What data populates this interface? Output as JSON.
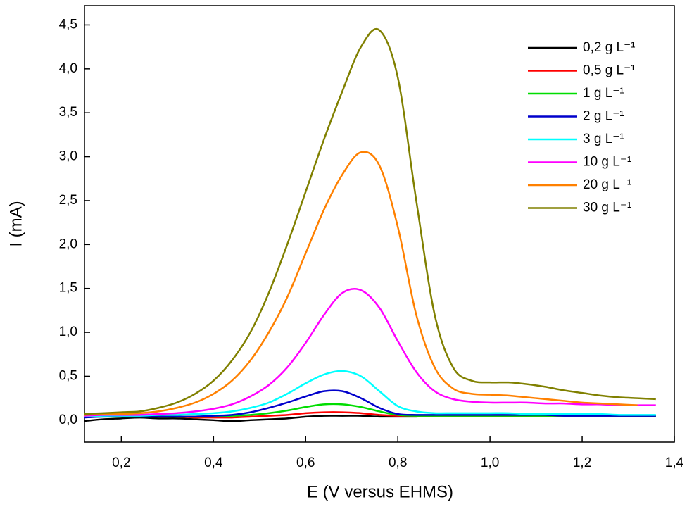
{
  "chart_data": {
    "type": "line",
    "x_label": "E (V versus EHMS)",
    "y_label": "I (mA)",
    "xlim": [
      0.12,
      1.4
    ],
    "ylim": [
      -0.25,
      4.72
    ],
    "xticks": [
      {
        "value": 0.2,
        "label": "0,2"
      },
      {
        "value": 0.4,
        "label": "0,4"
      },
      {
        "value": 0.6,
        "label": "0,6"
      },
      {
        "value": 0.8,
        "label": "0,8"
      },
      {
        "value": 1.0,
        "label": "1,0"
      },
      {
        "value": 1.2,
        "label": "1,2"
      },
      {
        "value": 1.4,
        "label": "1,4"
      }
    ],
    "yticks": [
      {
        "value": 0,
        "label": "0,0"
      },
      {
        "value": 0.5,
        "label": "0,5"
      },
      {
        "value": 1.0,
        "label": "1,0"
      },
      {
        "value": 1.5,
        "label": "1,5"
      },
      {
        "value": 2.0,
        "label": "2,0"
      },
      {
        "value": 2.5,
        "label": "2,5"
      },
      {
        "value": 3.0,
        "label": "3,0"
      },
      {
        "value": 3.5,
        "label": "3,5"
      },
      {
        "value": 4.0,
        "label": "4,0"
      },
      {
        "value": 4.5,
        "label": "4,5"
      }
    ],
    "legend": "upper right",
    "x": [
      0.12,
      0.16,
      0.2,
      0.24,
      0.28,
      0.32,
      0.36,
      0.4,
      0.44,
      0.48,
      0.52,
      0.56,
      0.6,
      0.64,
      0.68,
      0.72,
      0.76,
      0.8,
      0.84,
      0.88,
      0.92,
      0.96,
      1.0,
      1.04,
      1.08,
      1.12,
      1.16,
      1.2,
      1.24,
      1.28,
      1.32,
      1.36
    ],
    "series": [
      {
        "name": "0,2 g L⁻¹",
        "color": "#000000",
        "values": [
          -0.01,
          0.01,
          0.02,
          0.03,
          0.02,
          0.02,
          0.01,
          0.0,
          -0.01,
          0.0,
          0.01,
          0.02,
          0.04,
          0.05,
          0.05,
          0.05,
          0.04,
          0.04,
          0.04,
          0.05,
          0.05,
          0.05,
          0.05,
          0.05,
          0.05,
          0.05,
          0.05,
          0.05,
          0.05,
          0.05,
          0.05,
          0.05
        ]
      },
      {
        "name": "0,5 g L⁻¹",
        "color": "#ff0000",
        "values": [
          0.06,
          0.06,
          0.06,
          0.05,
          0.05,
          0.04,
          0.03,
          0.03,
          0.03,
          0.04,
          0.05,
          0.06,
          0.08,
          0.09,
          0.09,
          0.08,
          0.06,
          0.05,
          0.05,
          0.05,
          0.05,
          0.05,
          0.05,
          0.05,
          0.05,
          0.05,
          0.05,
          0.05,
          0.05,
          0.05,
          0.05,
          0.05
        ]
      },
      {
        "name": "1 g L⁻¹",
        "color": "#00dd00",
        "values": [
          0.04,
          0.04,
          0.04,
          0.04,
          0.04,
          0.04,
          0.04,
          0.04,
          0.05,
          0.06,
          0.08,
          0.11,
          0.15,
          0.18,
          0.18,
          0.15,
          0.1,
          0.06,
          0.05,
          0.05,
          0.05,
          0.05,
          0.05,
          0.05,
          0.05,
          0.05,
          0.05,
          0.05,
          0.05,
          0.05,
          0.05,
          0.05
        ]
      },
      {
        "name": "2 g L⁻¹",
        "color": "#0000cc",
        "values": [
          0.03,
          0.04,
          0.04,
          0.04,
          0.04,
          0.04,
          0.04,
          0.05,
          0.06,
          0.09,
          0.14,
          0.2,
          0.27,
          0.33,
          0.33,
          0.25,
          0.14,
          0.07,
          0.06,
          0.06,
          0.06,
          0.06,
          0.06,
          0.06,
          0.06,
          0.06,
          0.05,
          0.05,
          0.05,
          0.05,
          0.05,
          0.05
        ]
      },
      {
        "name": "3 g L⁻¹",
        "color": "#00ffff",
        "values": [
          0.04,
          0.05,
          0.05,
          0.05,
          0.06,
          0.06,
          0.07,
          0.08,
          0.1,
          0.14,
          0.2,
          0.3,
          0.42,
          0.52,
          0.56,
          0.5,
          0.33,
          0.16,
          0.1,
          0.08,
          0.08,
          0.08,
          0.08,
          0.08,
          0.07,
          0.07,
          0.07,
          0.07,
          0.07,
          0.06,
          0.06,
          0.06
        ]
      },
      {
        "name": "10 g L⁻¹",
        "color": "#ff00ff",
        "values": [
          0.05,
          0.06,
          0.06,
          0.06,
          0.07,
          0.08,
          0.1,
          0.13,
          0.18,
          0.27,
          0.4,
          0.6,
          0.88,
          1.2,
          1.45,
          1.48,
          1.28,
          0.9,
          0.55,
          0.33,
          0.24,
          0.21,
          0.2,
          0.2,
          0.2,
          0.19,
          0.19,
          0.18,
          0.18,
          0.17,
          0.17,
          0.17
        ]
      },
      {
        "name": "20 g L⁻¹",
        "color": "#ff8000",
        "values": [
          0.06,
          0.07,
          0.07,
          0.08,
          0.1,
          0.14,
          0.2,
          0.3,
          0.45,
          0.68,
          1.0,
          1.4,
          1.9,
          2.4,
          2.8,
          3.05,
          2.9,
          2.2,
          1.2,
          0.6,
          0.36,
          0.3,
          0.29,
          0.28,
          0.26,
          0.24,
          0.22,
          0.2,
          0.19,
          0.18,
          0.17,
          null
        ]
      },
      {
        "name": "30 g L⁻¹",
        "color": "#808000",
        "values": [
          0.07,
          0.08,
          0.09,
          0.1,
          0.14,
          0.2,
          0.3,
          0.45,
          0.68,
          1.0,
          1.45,
          2.0,
          2.6,
          3.2,
          3.75,
          4.25,
          4.44,
          3.9,
          2.5,
          1.2,
          0.6,
          0.45,
          0.43,
          0.43,
          0.41,
          0.38,
          0.34,
          0.31,
          0.28,
          0.26,
          0.25,
          0.24
        ]
      }
    ]
  }
}
